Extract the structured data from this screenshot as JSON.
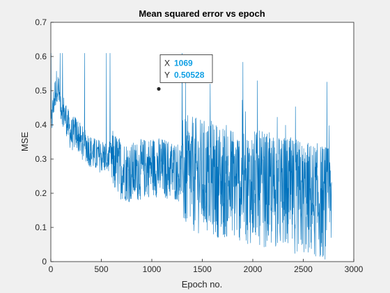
{
  "chart_data": {
    "type": "line",
    "title": "Mean squared error vs epoch",
    "xlabel": "Epoch no.",
    "ylabel": "MSE",
    "xlim": [
      0,
      3000
    ],
    "ylim": [
      0,
      0.7
    ],
    "xticks": [
      0,
      500,
      1000,
      1500,
      2000,
      2500,
      3000
    ],
    "yticks": [
      0,
      0.1,
      0.2,
      0.3,
      0.4,
      0.5,
      0.6,
      0.7
    ],
    "grid": false,
    "legend": "none",
    "series": [
      {
        "color": "#0072bd",
        "points": [
          [
            0,
            0.39
          ],
          [
            30,
            0.47
          ],
          [
            60,
            0.52
          ],
          [
            100,
            0.46
          ],
          [
            150,
            0.42
          ],
          [
            200,
            0.37
          ],
          [
            250,
            0.38
          ],
          [
            300,
            0.35
          ],
          [
            350,
            0.34
          ],
          [
            400,
            0.32
          ],
          [
            450,
            0.31
          ],
          [
            500,
            0.31
          ],
          [
            600,
            0.3
          ],
          [
            700,
            0.27
          ],
          [
            800,
            0.26
          ],
          [
            900,
            0.27
          ],
          [
            1000,
            0.28
          ],
          [
            1069,
            0.50528
          ],
          [
            1100,
            0.27
          ],
          [
            1200,
            0.26
          ],
          [
            1300,
            0.25
          ],
          [
            1400,
            0.26
          ],
          [
            1500,
            0.23
          ],
          [
            1600,
            0.22
          ],
          [
            1700,
            0.23
          ],
          [
            1800,
            0.2
          ],
          [
            1900,
            0.2
          ],
          [
            2000,
            0.19
          ],
          [
            2100,
            0.2
          ],
          [
            2200,
            0.19
          ],
          [
            2300,
            0.18
          ],
          [
            2400,
            0.17
          ],
          [
            2500,
            0.19
          ],
          [
            2600,
            0.18
          ],
          [
            2700,
            0.17
          ],
          [
            2780,
            0.16
          ]
        ]
      }
    ],
    "datatip": {
      "x_label": "X",
      "x_value": "1069",
      "y_label": "Y",
      "y_value": "0.50528",
      "x": 1069,
      "y": 0.50528
    }
  }
}
